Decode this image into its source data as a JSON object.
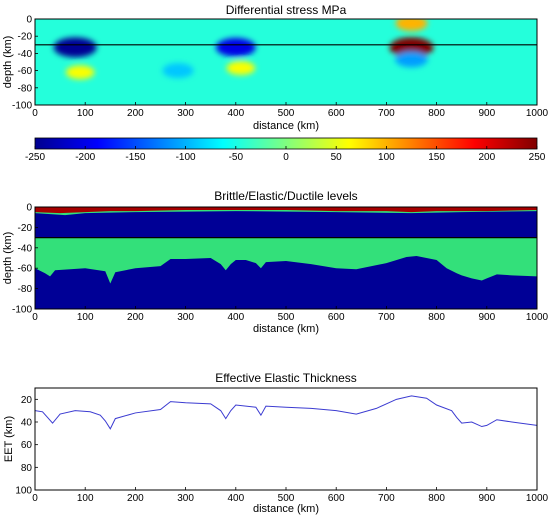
{
  "chart_data": [
    {
      "type": "heatmap",
      "title": "Differential stress MPa",
      "xlabel": "distance (km)",
      "ylabel": "depth (km)",
      "xlim": [
        0,
        1000
      ],
      "ylim": [
        -100,
        0
      ],
      "xticks": [
        0,
        100,
        200,
        300,
        400,
        500,
        600,
        700,
        800,
        900,
        1000
      ],
      "yticks": [
        0,
        -20,
        -40,
        -60,
        -80,
        -100
      ],
      "layer_boundary_depth": -30,
      "background_value": -45,
      "anomalies": [
        {
          "x": 80,
          "y": -33,
          "value": -240
        },
        {
          "x": 90,
          "y": -62,
          "value": 60
        },
        {
          "x": 285,
          "y": -60,
          "value": -90
        },
        {
          "x": 400,
          "y": -33,
          "value": -200
        },
        {
          "x": 410,
          "y": -57,
          "value": 60
        },
        {
          "x": 750,
          "y": -33,
          "value": 250
        },
        {
          "x": 750,
          "y": -5,
          "value": 100
        },
        {
          "x": 750,
          "y": -47,
          "value": -110
        }
      ]
    },
    {
      "type": "colorbar",
      "vmin": -250,
      "vmax": 250,
      "ticks": [
        -250,
        -200,
        -150,
        -100,
        -50,
        0,
        50,
        100,
        150,
        200,
        250
      ],
      "colormap": "jet"
    },
    {
      "type": "heatmap",
      "title": "Brittle/Elastic/Ductile levels",
      "xlabel": "distance (km)",
      "ylabel": "depth (km)",
      "xlim": [
        0,
        1000
      ],
      "ylim": [
        -100,
        0
      ],
      "xticks": [
        0,
        100,
        200,
        300,
        400,
        500,
        600,
        700,
        800,
        900,
        1000
      ],
      "yticks": [
        0,
        -20,
        -40,
        -60,
        -80,
        -100
      ],
      "levels": [
        {
          "color": "#a60000"
        },
        {
          "color": "#33e07a"
        },
        {
          "color": "#000096"
        }
      ],
      "upper_brittle_base_km": [
        {
          "x": 0,
          "y": -5
        },
        {
          "x": 50,
          "y": -6
        },
        {
          "x": 100,
          "y": -5
        },
        {
          "x": 150,
          "y": -4
        },
        {
          "x": 200,
          "y": -4
        },
        {
          "x": 300,
          "y": -3
        },
        {
          "x": 400,
          "y": -3
        },
        {
          "x": 500,
          "y": -3
        },
        {
          "x": 600,
          "y": -4
        },
        {
          "x": 700,
          "y": -4
        },
        {
          "x": 750,
          "y": -5
        },
        {
          "x": 800,
          "y": -4
        },
        {
          "x": 900,
          "y": -4
        },
        {
          "x": 1000,
          "y": -3
        }
      ],
      "upper_elastic_base_km": [
        {
          "x": 0,
          "y": -6
        },
        {
          "x": 60,
          "y": -8
        },
        {
          "x": 100,
          "y": -6
        },
        {
          "x": 200,
          "y": -5
        },
        {
          "x": 400,
          "y": -4
        },
        {
          "x": 600,
          "y": -5
        },
        {
          "x": 750,
          "y": -6
        },
        {
          "x": 850,
          "y": -5
        },
        {
          "x": 1000,
          "y": -4
        }
      ],
      "lower_elastic_base_km": [
        {
          "x": 0,
          "y": -60
        },
        {
          "x": 20,
          "y": -65
        },
        {
          "x": 30,
          "y": -68
        },
        {
          "x": 40,
          "y": -62
        },
        {
          "x": 100,
          "y": -60
        },
        {
          "x": 140,
          "y": -63
        },
        {
          "x": 150,
          "y": -75
        },
        {
          "x": 160,
          "y": -64
        },
        {
          "x": 200,
          "y": -60
        },
        {
          "x": 250,
          "y": -58
        },
        {
          "x": 270,
          "y": -51
        },
        {
          "x": 300,
          "y": -51
        },
        {
          "x": 350,
          "y": -50
        },
        {
          "x": 370,
          "y": -56
        },
        {
          "x": 380,
          "y": -62
        },
        {
          "x": 390,
          "y": -56
        },
        {
          "x": 400,
          "y": -52
        },
        {
          "x": 420,
          "y": -52
        },
        {
          "x": 440,
          "y": -55
        },
        {
          "x": 450,
          "y": -60
        },
        {
          "x": 460,
          "y": -54
        },
        {
          "x": 500,
          "y": -53
        },
        {
          "x": 550,
          "y": -56
        },
        {
          "x": 600,
          "y": -60
        },
        {
          "x": 640,
          "y": -61
        },
        {
          "x": 700,
          "y": -55
        },
        {
          "x": 740,
          "y": -49
        },
        {
          "x": 760,
          "y": -48
        },
        {
          "x": 800,
          "y": -52
        },
        {
          "x": 820,
          "y": -60
        },
        {
          "x": 840,
          "y": -65
        },
        {
          "x": 850,
          "y": -67
        },
        {
          "x": 870,
          "y": -70
        },
        {
          "x": 890,
          "y": -72
        },
        {
          "x": 900,
          "y": -70
        },
        {
          "x": 920,
          "y": -66
        },
        {
          "x": 950,
          "y": -67
        },
        {
          "x": 1000,
          "y": -68
        }
      ]
    },
    {
      "type": "line",
      "title": "Effective Elastic Thickness",
      "xlabel": "distance (km)",
      "ylabel": "EET (km)",
      "xlim": [
        0,
        1000
      ],
      "ylim": [
        100,
        10
      ],
      "y_inverted": true,
      "xticks": [
        0,
        100,
        200,
        300,
        400,
        500,
        600,
        700,
        800,
        900,
        1000
      ],
      "yticks": [
        20,
        40,
        60,
        80,
        100
      ],
      "line_color": "#3b3bd1",
      "x": [
        0,
        15,
        25,
        35,
        50,
        80,
        110,
        130,
        140,
        150,
        160,
        200,
        250,
        270,
        300,
        350,
        370,
        380,
        390,
        400,
        440,
        450,
        460,
        500,
        550,
        600,
        640,
        680,
        720,
        750,
        780,
        800,
        830,
        840,
        850,
        870,
        890,
        900,
        920,
        950,
        1000
      ],
      "y": [
        30,
        31,
        36,
        41,
        33,
        30,
        31,
        34,
        39,
        46,
        37,
        32,
        29,
        22,
        23,
        24,
        30,
        37,
        30,
        25,
        27,
        34,
        26,
        27,
        28,
        30,
        33,
        28,
        20,
        17,
        19,
        25,
        30,
        36,
        41,
        40,
        44,
        43,
        38,
        40,
        43
      ]
    }
  ]
}
